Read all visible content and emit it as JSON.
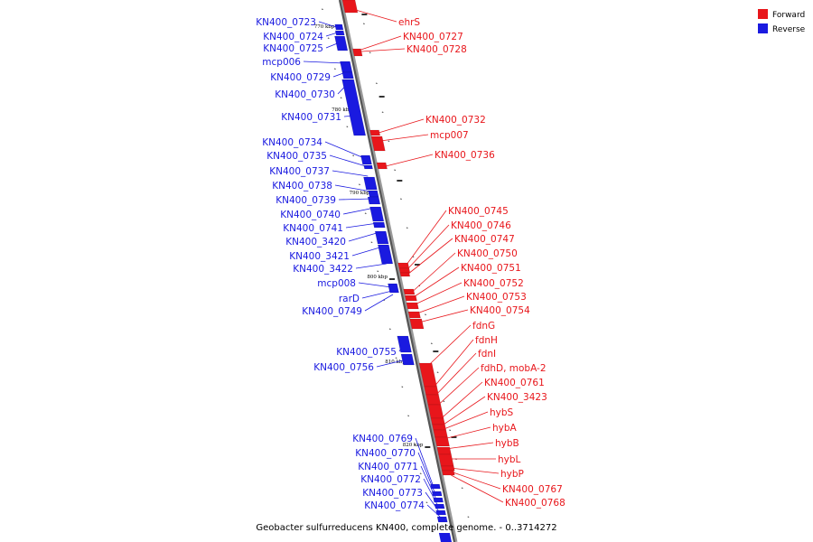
{
  "caption": "Geobacter sulfurreducens KN400, complete genome. - 0..3714272",
  "legend": [
    {
      "label": "Forward",
      "color": "#e8161b"
    },
    {
      "label": "Reverse",
      "color": "#1a1ae0"
    }
  ],
  "ticks": [
    "770 kbp",
    "780 kbp",
    "790 kbp",
    "800 kbp",
    "810 kbp",
    "820 kbp"
  ],
  "forward_genes": [
    "ehrS",
    "KN400_0727",
    "KN400_0728",
    "KN400_0732",
    "mcp007",
    "KN400_0736",
    "KN400_0745",
    "KN400_0746",
    "KN400_0747",
    "KN400_0750",
    "KN400_0751",
    "KN400_0752",
    "KN400_0753",
    "KN400_0754",
    "fdnG",
    "fdnH",
    "fdnI",
    "fdhD, mobA-2",
    "KN400_0761",
    "KN400_3423",
    "hybS",
    "hybA",
    "hybB",
    "hybL",
    "hybP",
    "KN400_0767",
    "KN400_0768"
  ],
  "reverse_genes": [
    "KN400_0723",
    "KN400_0724",
    "KN400_0725",
    "mcp006",
    "KN400_0729",
    "KN400_0730",
    "KN400_0731",
    "KN400_0734",
    "KN400_0735",
    "KN400_0737",
    "KN400_0738",
    "KN400_0739",
    "KN400_0740",
    "KN400_0741",
    "KN400_3420",
    "KN400_3421",
    "KN400_3422",
    "mcp008",
    "rarD",
    "KN400_0749",
    "KN400_0755",
    "KN400_0756",
    "KN400_0769",
    "KN400_0770",
    "KN400_0771",
    "KN400_0772",
    "KN400_0773",
    "KN400_0774"
  ]
}
